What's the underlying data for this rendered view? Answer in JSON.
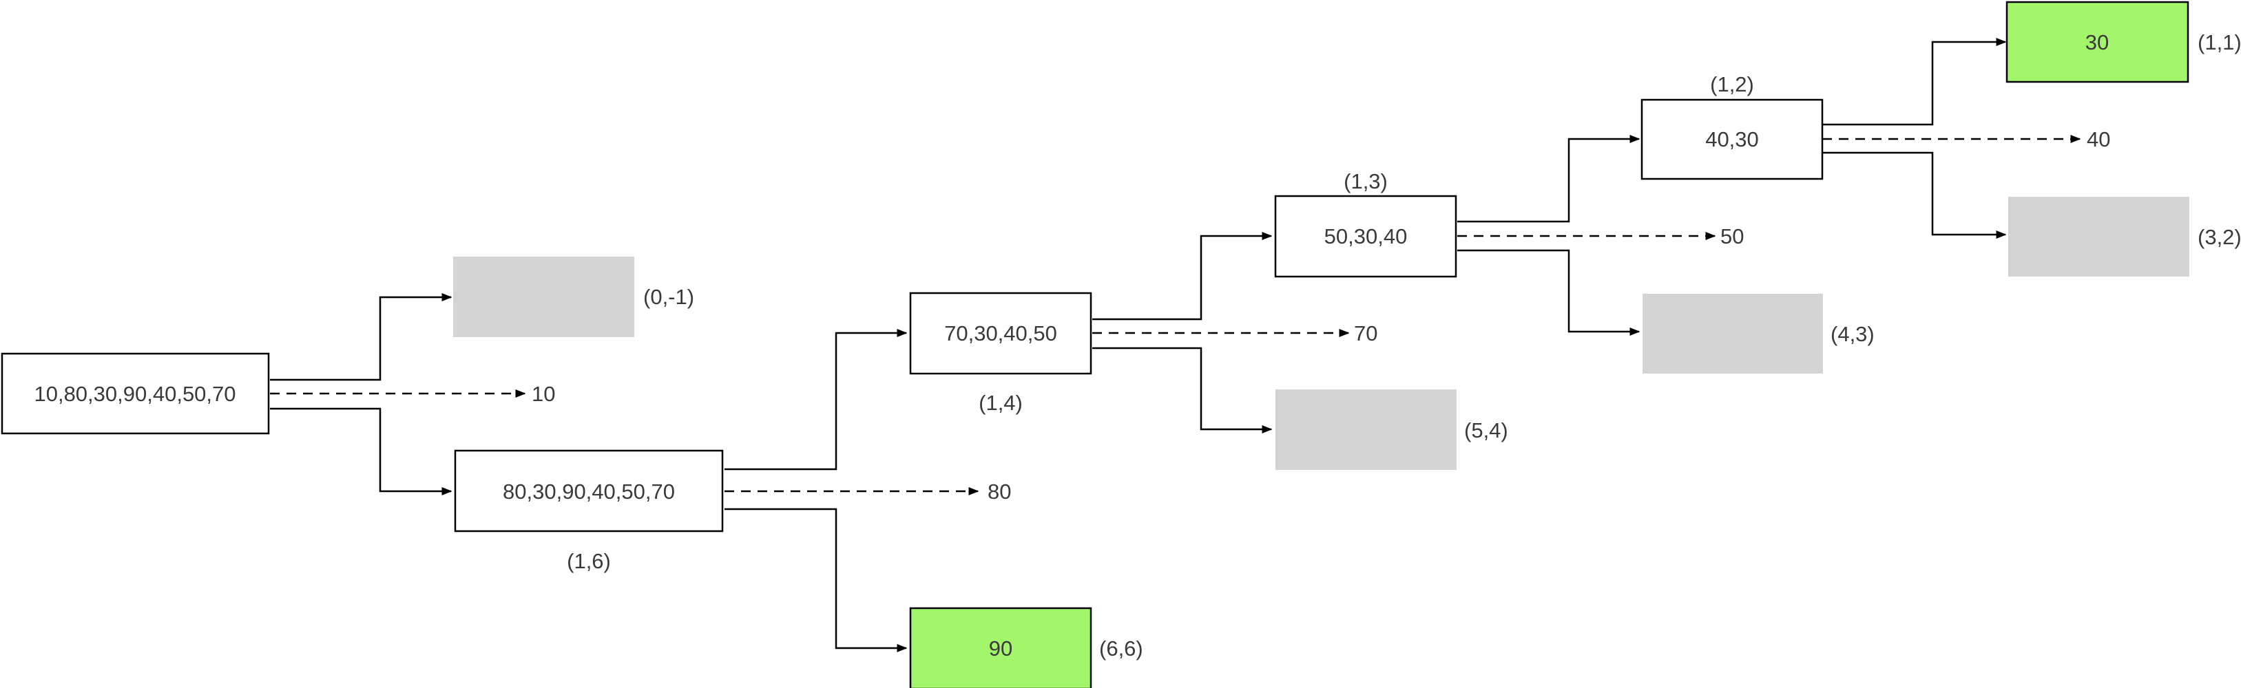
{
  "nodes": {
    "root": {
      "label": "10,80,30,90,40,50,70",
      "output": "10"
    },
    "n_0m1": {
      "label": "",
      "coord": "(0,-1)"
    },
    "n_16": {
      "label": "80,30,90,40,50,70",
      "coord": "(1,6)",
      "output": "80"
    },
    "n_66": {
      "label": "90",
      "coord": "(6,6)"
    },
    "n_14": {
      "label": "70,30,40,50",
      "coord": "(1,4)",
      "output": "70"
    },
    "n_54": {
      "label": "",
      "coord": "(5,4)"
    },
    "n_13": {
      "label": "50,30,40",
      "coord": "(1,3)",
      "output": "50"
    },
    "n_43": {
      "label": "",
      "coord": "(4,3)"
    },
    "n_12": {
      "label": "40,30",
      "coord": "(1,2)",
      "output": "40"
    },
    "n_32": {
      "label": "",
      "coord": "(3,2)"
    },
    "n_11": {
      "label": "30",
      "coord": "(1,1)"
    }
  },
  "colors": {
    "box_border": "#000000",
    "empty_fill": "#d4d4d4",
    "leaf_fill": "#a3f56b",
    "text": "#3a3a3a"
  }
}
